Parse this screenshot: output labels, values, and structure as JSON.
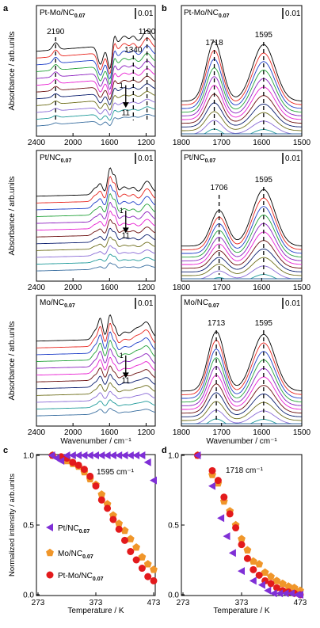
{
  "figure": {
    "panel_labels": [
      "a",
      "b",
      "c",
      "d"
    ]
  },
  "spectra": {
    "series_colors": [
      "#000000",
      "#e8261f",
      "#1f3fc8",
      "#23a23a",
      "#8c1fbf",
      "#e81fd2",
      "#6b0f0f",
      "#0b1e6e",
      "#6d6d1a",
      "#8a6bd6",
      "#1f9a9a",
      "#3a6fa0"
    ],
    "panel_a": [
      {
        "sample_main": "Pt-Mo/NC",
        "sample_sub": "0.07",
        "scale": "0.01",
        "peak_labels": [
          "2190",
          "1340",
          "1190"
        ],
        "series_start": "1",
        "series_end": "11",
        "xlim": [
          2400,
          1100
        ],
        "xticks": [
          "2400",
          "2000",
          "1600",
          "1200"
        ],
        "ylabel": "Absorbance / arb.units",
        "xlabel": ""
      },
      {
        "sample_main": "Pt/NC",
        "sample_sub": "0.07",
        "scale": "0.01",
        "peak_labels": [],
        "series_start": "1",
        "series_end": "11",
        "xlim": [
          2400,
          1100
        ],
        "xticks": [
          "2400",
          "2000",
          "1600",
          "1200"
        ],
        "ylabel": "Absorbance / arb.units",
        "xlabel": ""
      },
      {
        "sample_main": "Mo/NC",
        "sample_sub": "0.07",
        "scale": "0.01",
        "peak_labels": [],
        "series_start": "1",
        "series_end": "11",
        "xlim": [
          2400,
          1100
        ],
        "xticks": [
          "2400",
          "2000",
          "1600",
          "1200"
        ],
        "ylabel": "Absorbance / arb.units",
        "xlabel": "Wavenumber / cm⁻¹"
      }
    ],
    "panel_b": [
      {
        "sample_main": "Pt-Mo/NC",
        "sample_sub": "0.07",
        "scale": "0.01",
        "peak_labels": [
          "1718",
          "1595"
        ],
        "xlim": [
          1800,
          1500
        ],
        "xticks": [
          "1800",
          "1700",
          "1600",
          "1500"
        ],
        "xlabel": ""
      },
      {
        "sample_main": "Pt/NC",
        "sample_sub": "0.07",
        "scale": "0.01",
        "peak_labels": [
          "1706",
          "1595"
        ],
        "xlim": [
          1800,
          1500
        ],
        "xticks": [
          "1800",
          "1700",
          "1600",
          "1500"
        ],
        "xlabel": ""
      },
      {
        "sample_main": "Mo/NC",
        "sample_sub": "0.07",
        "scale": "0.01",
        "peak_labels": [
          "1713",
          "1595"
        ],
        "xlim": [
          1800,
          1500
        ],
        "xticks": [
          "1800",
          "1700",
          "1600",
          "1500"
        ],
        "xlabel": "Wavenumber / cm⁻¹"
      }
    ]
  },
  "chart_data": [
    {
      "type": "scatter",
      "panel": "c",
      "annotation": "1595 cm⁻¹",
      "xlabel": "Temperature / K",
      "ylabel": "Normalized intensity / arb.units",
      "xlim": [
        273,
        473
      ],
      "ylim": [
        0,
        1.0
      ],
      "xticks": [
        "273",
        "373",
        "473"
      ],
      "yticks": [
        "0.0",
        "0.5",
        "1.0"
      ],
      "legend_position": "bottom-left",
      "series": [
        {
          "name": "Pt/NC",
          "name_sub": "0.07",
          "marker": "triangle-left",
          "color": "#7f2fd6",
          "x": [
            297,
            305,
            313,
            323,
            333,
            343,
            353,
            363,
            373,
            383,
            393,
            403,
            413,
            423,
            433,
            443,
            453,
            463,
            473
          ],
          "y": [
            1.0,
            0.98,
            0.96,
            1.0,
            1.0,
            1.0,
            1.0,
            1.0,
            1.0,
            1.0,
            1.0,
            1.0,
            1.0,
            1.0,
            1.0,
            1.0,
            1.0,
            0.95,
            0.82
          ]
        },
        {
          "name": "Mo/NC",
          "name_sub": "0.07",
          "marker": "pentagon",
          "color": "#f0962a",
          "x": [
            298,
            313,
            323,
            333,
            343,
            353,
            363,
            373,
            383,
            393,
            403,
            413,
            423,
            433,
            443,
            453,
            463,
            473
          ],
          "y": [
            1.0,
            0.98,
            0.96,
            0.94,
            0.92,
            0.88,
            0.83,
            0.79,
            0.72,
            0.65,
            0.57,
            0.51,
            0.46,
            0.4,
            0.34,
            0.27,
            0.22,
            0.18
          ]
        },
        {
          "name": "Pt-Mo/NC",
          "name_sub": "0.07",
          "marker": "circle",
          "color": "#e31a1c",
          "x": [
            298,
            313,
            323,
            333,
            343,
            353,
            363,
            373,
            383,
            393,
            403,
            413,
            423,
            433,
            443,
            453,
            463,
            473
          ],
          "y": [
            1.0,
            0.99,
            0.98,
            0.95,
            0.93,
            0.9,
            0.85,
            0.78,
            0.68,
            0.62,
            0.54,
            0.47,
            0.39,
            0.31,
            0.25,
            0.19,
            0.13,
            0.1
          ]
        }
      ]
    },
    {
      "type": "scatter",
      "panel": "d",
      "annotation": "1718 cm⁻¹",
      "xlabel": "Temperature / K",
      "ylabel": "",
      "xlim": [
        273,
        473
      ],
      "ylim": [
        0,
        1.0
      ],
      "xticks": [
        "273",
        "373",
        "473"
      ],
      "yticks": [
        "0.0",
        "0.5",
        "1.0"
      ],
      "series": [
        {
          "name": "Pt/NC",
          "marker": "triangle-left",
          "color": "#7f2fd6",
          "x": [
            298,
            323,
            338,
            348,
            358,
            373,
            393,
            408,
            418,
            428,
            438,
            448,
            458,
            468,
            473
          ],
          "y": [
            1.0,
            0.78,
            0.55,
            0.42,
            0.3,
            0.17,
            0.1,
            0.07,
            0.03,
            0.01,
            0.01,
            0.01,
            0.01,
            0.0,
            0.0
          ]
        },
        {
          "name": "Mo/NC",
          "marker": "pentagon",
          "color": "#f0962a",
          "x": [
            298,
            323,
            333,
            343,
            353,
            363,
            373,
            383,
            393,
            403,
            413,
            423,
            433,
            443,
            453,
            463,
            473
          ],
          "y": [
            1.0,
            0.86,
            0.8,
            0.67,
            0.6,
            0.5,
            0.4,
            0.32,
            0.24,
            0.22,
            0.16,
            0.13,
            0.1,
            0.08,
            0.06,
            0.05,
            0.03
          ]
        },
        {
          "name": "Pt-Mo/NC",
          "marker": "circle",
          "color": "#e31a1c",
          "x": [
            298,
            323,
            333,
            343,
            353,
            363,
            373,
            383,
            393,
            403,
            413,
            423,
            433,
            443,
            453,
            463,
            473
          ],
          "y": [
            1.0,
            0.89,
            0.82,
            0.7,
            0.58,
            0.48,
            0.36,
            0.26,
            0.18,
            0.14,
            0.1,
            0.08,
            0.05,
            0.03,
            0.02,
            0.01,
            0.0
          ]
        }
      ]
    }
  ]
}
